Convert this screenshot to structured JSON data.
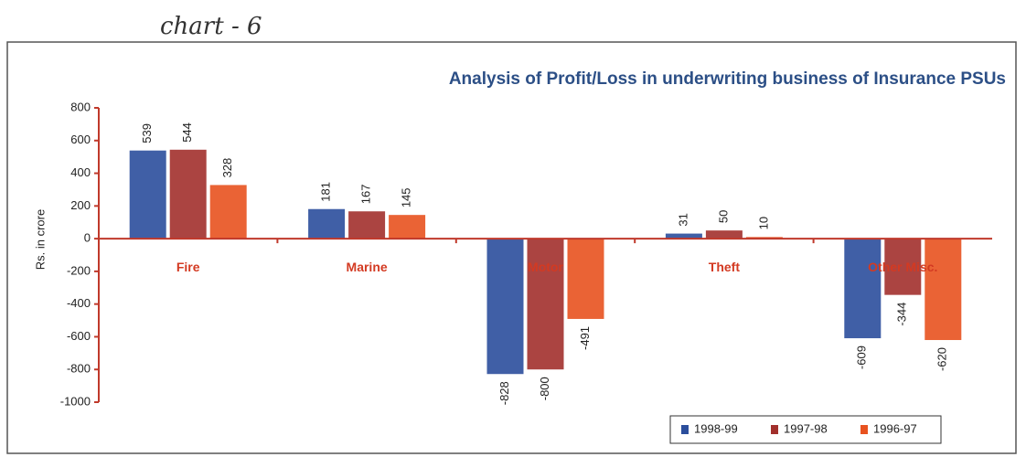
{
  "chart_data": {
    "type": "bar",
    "annotation": "chart - 6",
    "title": "Analysis of Profit/Loss in underwriting business of Insurance PSUs",
    "y_label": "Rs. in crore",
    "categories": [
      "Fire",
      "Marine",
      "Motor",
      "Theft",
      "Other Misc."
    ],
    "series": [
      {
        "name": "1998-99",
        "color": "#2b4e9c",
        "values": [
          539,
          181,
          -828,
          31,
          -609
        ]
      },
      {
        "name": "1997-98",
        "color": "#a2302c",
        "values": [
          544,
          167,
          -800,
          50,
          -344
        ]
      },
      {
        "name": "1996-97",
        "color": "#e8521f",
        "values": [
          328,
          145,
          -491,
          10,
          -620
        ]
      }
    ],
    "ylim": [
      -1000,
      800
    ],
    "yticks": [
      -1000,
      -800,
      -600,
      -400,
      -200,
      0,
      200,
      400,
      600,
      800
    ],
    "legend": "lower right",
    "data_labels": true
  }
}
